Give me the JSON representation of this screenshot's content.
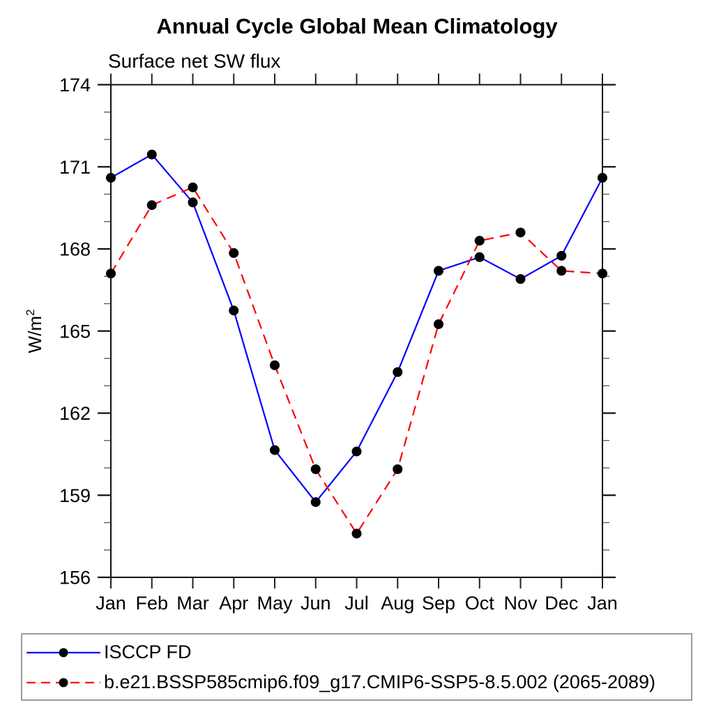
{
  "chart_data": {
    "type": "line",
    "title": "Annual Cycle Global Mean Climatology",
    "subtitle": "Surface net SW flux",
    "ylabel_base": "W/m",
    "ylabel_sup": "2",
    "categories": [
      "Jan",
      "Feb",
      "Mar",
      "Apr",
      "May",
      "Jun",
      "Jul",
      "Aug",
      "Sep",
      "Oct",
      "Nov",
      "Dec",
      "Jan"
    ],
    "series": [
      {
        "name": "ISCCP FD",
        "color": "#0000ff",
        "style": "solid",
        "marker": "filled-circle",
        "values": [
          170.6,
          171.45,
          169.7,
          165.75,
          160.65,
          158.75,
          160.6,
          163.5,
          167.2,
          167.7,
          166.9,
          167.75,
          170.6
        ]
      },
      {
        "name": "b.e21.BSSP585cmip6.f09_g17.CMIP6-SSP5-8.5.002 (2065-2089)",
        "color": "#ff0000",
        "style": "dashed",
        "marker": "filled-circle",
        "values": [
          167.1,
          169.6,
          170.25,
          167.85,
          163.75,
          159.95,
          157.6,
          159.95,
          165.25,
          168.3,
          168.6,
          167.2,
          167.1
        ]
      }
    ],
    "ylim": [
      156,
      174
    ],
    "yticks_major": [
      156,
      159,
      162,
      165,
      168,
      171,
      174
    ],
    "ytick_minor_step": 1,
    "grid": "off",
    "legend_position": "bottom-left-box",
    "marker_color": "#000000",
    "axis_color": "#111111"
  }
}
